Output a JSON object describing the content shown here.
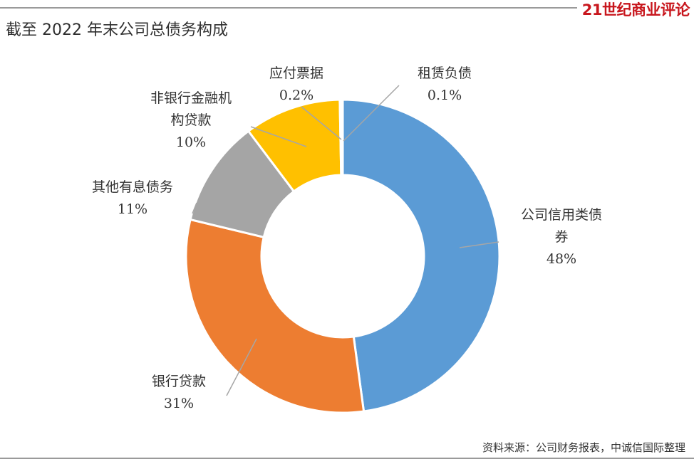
{
  "header": {
    "brand": "21世纪商业评论",
    "brand_color": "#c8161d",
    "title": "截至 2022 年末公司总债务构成"
  },
  "footer": {
    "source": "资料来源：公司财务报表，中诚信国际整理"
  },
  "chart_data": {
    "type": "pie",
    "style": "donut",
    "title": "截至 2022 年末公司总债务构成",
    "legend": "none",
    "series": [
      {
        "name": "公司信用类债券",
        "label_lines": [
          "公司信用类债",
          "券"
        ],
        "pct_label": "48%",
        "value": 48.0,
        "color": "#5b9bd5"
      },
      {
        "name": "银行贷款",
        "label_lines": [
          "银行贷款"
        ],
        "pct_label": "31%",
        "value": 31.0,
        "color": "#ed7d31"
      },
      {
        "name": "其他有息债务",
        "label_lines": [
          "其他有息债务"
        ],
        "pct_label": "11%",
        "value": 11.0,
        "color": "#a5a5a5"
      },
      {
        "name": "非银行金融机构贷款",
        "label_lines": [
          "非银行金融机",
          "构贷款"
        ],
        "pct_label": "10%",
        "value": 10.0,
        "color": "#ffc000"
      },
      {
        "name": "应付票据",
        "label_lines": [
          "应付票据"
        ],
        "pct_label": "0.2%",
        "value": 0.2,
        "color": "#4472c4"
      },
      {
        "name": "租赁负债",
        "label_lines": [
          "租赁负债"
        ],
        "pct_label": "0.1%",
        "value": 0.1,
        "color": "#70ad47"
      }
    ]
  }
}
